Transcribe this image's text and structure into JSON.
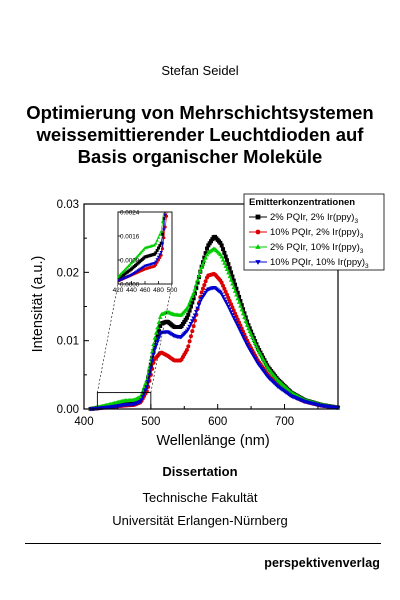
{
  "cover": {
    "author": "Stefan Seidel",
    "title_lines": [
      "Optimierung von Mehrschichtsystemen",
      "weissemittierender Leuchtdioden auf",
      "Basis organischer Moleküle"
    ],
    "type": "Dissertation",
    "faculty": "Technische Fakultät",
    "university": "Universität Erlangen-Nürnberg",
    "publisher": "perspektivenverlag"
  },
  "chart_data": {
    "type": "scatter",
    "xlabel": "Wellenlänge (nm)",
    "ylabel": "Intensität (a.u.)",
    "xlim": [
      400,
      780
    ],
    "ylim": [
      0,
      0.03
    ],
    "x_ticks": [
      "400",
      "500",
      "600",
      "700"
    ],
    "y_ticks": [
      "0.00",
      "0.01",
      "0.02",
      "0.03"
    ],
    "grid": false,
    "legend": {
      "title": "Emitterkonzentrationen",
      "placement": "top-right"
    },
    "series": [
      {
        "name": "2% PQIr, 2% Ir(ppy)",
        "name_sub": "3",
        "color": "#000000",
        "marker": "square",
        "points": [
          [
            410,
            0
          ],
          [
            440,
            0.0005
          ],
          [
            460,
            0.0009
          ],
          [
            475,
            0.001
          ],
          [
            485,
            0.0014
          ],
          [
            495,
            0.004
          ],
          [
            505,
            0.009
          ],
          [
            515,
            0.0125
          ],
          [
            525,
            0.0128
          ],
          [
            535,
            0.012
          ],
          [
            545,
            0.012
          ],
          [
            555,
            0.0135
          ],
          [
            565,
            0.0165
          ],
          [
            575,
            0.0205
          ],
          [
            585,
            0.0238
          ],
          [
            595,
            0.0253
          ],
          [
            605,
            0.0242
          ],
          [
            615,
            0.0215
          ],
          [
            625,
            0.0185
          ],
          [
            635,
            0.0155
          ],
          [
            645,
            0.0125
          ],
          [
            660,
            0.009
          ],
          [
            675,
            0.0062
          ],
          [
            690,
            0.0043
          ],
          [
            710,
            0.0024
          ],
          [
            730,
            0.0013
          ],
          [
            755,
            0.0006
          ],
          [
            780,
            0.0002
          ]
        ]
      },
      {
        "name": "10% PQIr, 2% Ir(ppy)",
        "name_sub": "3",
        "color": "#dd0000",
        "marker": "circle",
        "points": [
          [
            410,
            0
          ],
          [
            440,
            0.0003
          ],
          [
            460,
            0.0005
          ],
          [
            475,
            0.0006
          ],
          [
            485,
            0.001
          ],
          [
            495,
            0.0028
          ],
          [
            505,
            0.0072
          ],
          [
            515,
            0.0083
          ],
          [
            525,
            0.0078
          ],
          [
            535,
            0.0071
          ],
          [
            545,
            0.0071
          ],
          [
            555,
            0.0088
          ],
          [
            565,
            0.0125
          ],
          [
            575,
            0.0168
          ],
          [
            585,
            0.0195
          ],
          [
            595,
            0.0198
          ],
          [
            605,
            0.0187
          ],
          [
            615,
            0.0165
          ],
          [
            625,
            0.0142
          ],
          [
            635,
            0.012
          ],
          [
            645,
            0.0098
          ],
          [
            660,
            0.0071
          ],
          [
            675,
            0.005
          ],
          [
            690,
            0.0035
          ],
          [
            710,
            0.002
          ],
          [
            730,
            0.0011
          ],
          [
            755,
            0.0005
          ],
          [
            780,
            0.0002
          ]
        ]
      },
      {
        "name": "2% PQIr, 10% Ir(ppy)",
        "name_sub": "3",
        "color": "#00cc00",
        "marker": "triangle-up",
        "points": [
          [
            410,
            0
          ],
          [
            440,
            0.0007
          ],
          [
            460,
            0.0012
          ],
          [
            475,
            0.0013
          ],
          [
            485,
            0.0018
          ],
          [
            495,
            0.0045
          ],
          [
            505,
            0.01
          ],
          [
            515,
            0.0138
          ],
          [
            525,
            0.0142
          ],
          [
            535,
            0.0138
          ],
          [
            545,
            0.0137
          ],
          [
            555,
            0.0148
          ],
          [
            565,
            0.0172
          ],
          [
            575,
            0.0205
          ],
          [
            585,
            0.0228
          ],
          [
            595,
            0.0235
          ],
          [
            605,
            0.0225
          ],
          [
            615,
            0.0202
          ],
          [
            625,
            0.0175
          ],
          [
            635,
            0.0148
          ],
          [
            645,
            0.012
          ],
          [
            660,
            0.0087
          ],
          [
            675,
            0.006
          ],
          [
            690,
            0.0042
          ],
          [
            710,
            0.0024
          ],
          [
            730,
            0.0013
          ],
          [
            755,
            0.0006
          ],
          [
            780,
            0.0002
          ]
        ]
      },
      {
        "name": "10% PQIr, 10% Ir(ppy)",
        "name_sub": "3",
        "color": "#0000cc",
        "marker": "triangle-down",
        "points": [
          [
            410,
            0
          ],
          [
            440,
            0.0003
          ],
          [
            460,
            0.0006
          ],
          [
            475,
            0.0007
          ],
          [
            485,
            0.0011
          ],
          [
            495,
            0.0035
          ],
          [
            505,
            0.0085
          ],
          [
            515,
            0.0112
          ],
          [
            525,
            0.0113
          ],
          [
            535,
            0.0107
          ],
          [
            545,
            0.0105
          ],
          [
            555,
            0.0115
          ],
          [
            565,
            0.0135
          ],
          [
            575,
            0.016
          ],
          [
            585,
            0.0175
          ],
          [
            595,
            0.0178
          ],
          [
            605,
            0.017
          ],
          [
            615,
            0.0152
          ],
          [
            625,
            0.0132
          ],
          [
            635,
            0.0112
          ],
          [
            645,
            0.0092
          ],
          [
            660,
            0.0067
          ],
          [
            675,
            0.0047
          ],
          [
            690,
            0.0033
          ],
          [
            710,
            0.0019
          ],
          [
            730,
            0.0011
          ],
          [
            755,
            0.0005
          ],
          [
            780,
            0.0002
          ]
        ]
      }
    ],
    "inset": {
      "xlim": [
        420,
        500
      ],
      "ylim": [
        0,
        0.0024
      ],
      "x_ticks": [
        "420",
        "440",
        "460",
        "480",
        "500"
      ],
      "y_ticks": [
        "0.0000",
        "0.0008",
        "0.0016",
        "0.0024"
      ]
    }
  }
}
